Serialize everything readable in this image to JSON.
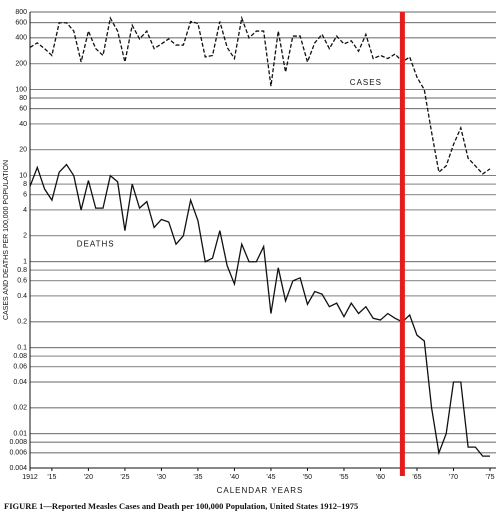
{
  "chart_data": {
    "type": "line",
    "caption": "FIGURE 1—Reported Measles Cases and Death per 100,000 Population, United States 1912–1975",
    "x_label": "CALENDAR YEARS",
    "y_label": "CASES AND DEATHS PER 100,000 POPULATION",
    "log_y": true,
    "grid": true,
    "x": [
      1912,
      1913,
      1914,
      1915,
      1916,
      1917,
      1918,
      1919,
      1920,
      1921,
      1922,
      1923,
      1924,
      1925,
      1926,
      1927,
      1928,
      1929,
      1930,
      1931,
      1932,
      1933,
      1934,
      1935,
      1936,
      1937,
      1938,
      1939,
      1940,
      1941,
      1942,
      1943,
      1944,
      1945,
      1946,
      1947,
      1948,
      1949,
      1950,
      1951,
      1952,
      1953,
      1954,
      1955,
      1956,
      1957,
      1958,
      1959,
      1960,
      1961,
      1962,
      1963,
      1964,
      1965,
      1966,
      1967,
      1968,
      1969,
      1970,
      1971,
      1972,
      1973,
      1974,
      1975
    ],
    "series": [
      {
        "name": "CASES",
        "color": "#111111",
        "dash": true,
        "values": [
          310,
          350,
          300,
          250,
          600,
          600,
          480,
          210,
          480,
          300,
          250,
          680,
          480,
          210,
          560,
          390,
          480,
          300,
          340,
          390,
          330,
          330,
          620,
          590,
          240,
          250,
          620,
          310,
          230,
          680,
          400,
          480,
          480,
          110,
          480,
          160,
          420,
          420,
          210,
          350,
          440,
          300,
          420,
          340,
          370,
          280,
          440,
          230,
          250,
          230,
          260,
          210,
          240,
          140,
          100,
          32,
          11,
          13,
          23,
          36,
          16,
          13,
          10.5,
          12
        ]
      },
      {
        "name": "DEATHS",
        "color": "#111111",
        "dash": false,
        "values": [
          7.5,
          12.5,
          7,
          5.2,
          11,
          13.5,
          10,
          4,
          8.8,
          4.2,
          4.2,
          10,
          8.5,
          2.3,
          8,
          4.2,
          5,
          2.5,
          3.1,
          2.9,
          1.6,
          2,
          5.2,
          3,
          1,
          1.1,
          2.3,
          0.9,
          0.55,
          1.6,
          1,
          1,
          1.5,
          0.25,
          0.85,
          0.35,
          0.6,
          0.65,
          0.32,
          0.45,
          0.42,
          0.3,
          0.33,
          0.23,
          0.33,
          0.25,
          0.3,
          0.22,
          0.21,
          0.25,
          0.22,
          0.2,
          0.24,
          0.14,
          0.12,
          0.02,
          0.006,
          0.01,
          0.04,
          0.04,
          0.007,
          0.007,
          0.0055,
          0.0055
        ]
      }
    ],
    "series_label_positions": [
      {
        "x": 1958,
        "y": 120
      },
      {
        "x": 1921,
        "y": 1.6
      }
    ],
    "vertical_line": {
      "x": 1963,
      "color": "#e41c1c"
    },
    "xlim": [
      1912,
      1975
    ],
    "xticks": [
      1912,
      {
        "value": 1915,
        "label": "'15"
      },
      {
        "value": 1920,
        "label": "'20"
      },
      {
        "value": 1925,
        "label": "'25"
      },
      {
        "value": 1930,
        "label": "'30"
      },
      {
        "value": 1935,
        "label": "'35"
      },
      {
        "value": 1940,
        "label": "'40"
      },
      {
        "value": 1945,
        "label": "'45"
      },
      {
        "value": 1950,
        "label": "'50"
      },
      {
        "value": 1955,
        "label": "'55"
      },
      {
        "value": 1960,
        "label": "'60"
      },
      {
        "value": 1965,
        "label": "'65"
      },
      {
        "value": 1970,
        "label": "'70"
      },
      {
        "value": 1975,
        "label": "'75"
      }
    ],
    "ylim": [
      0.004,
      800
    ],
    "yticks": [
      800,
      600,
      400,
      200,
      100,
      80,
      60,
      40,
      20,
      10,
      8,
      6,
      4,
      2,
      1,
      0.8,
      0.6,
      0.4,
      0.2,
      0.1,
      0.08,
      0.06,
      0.04,
      0.02,
      0.01,
      0.008,
      0.006,
      0.004
    ]
  }
}
